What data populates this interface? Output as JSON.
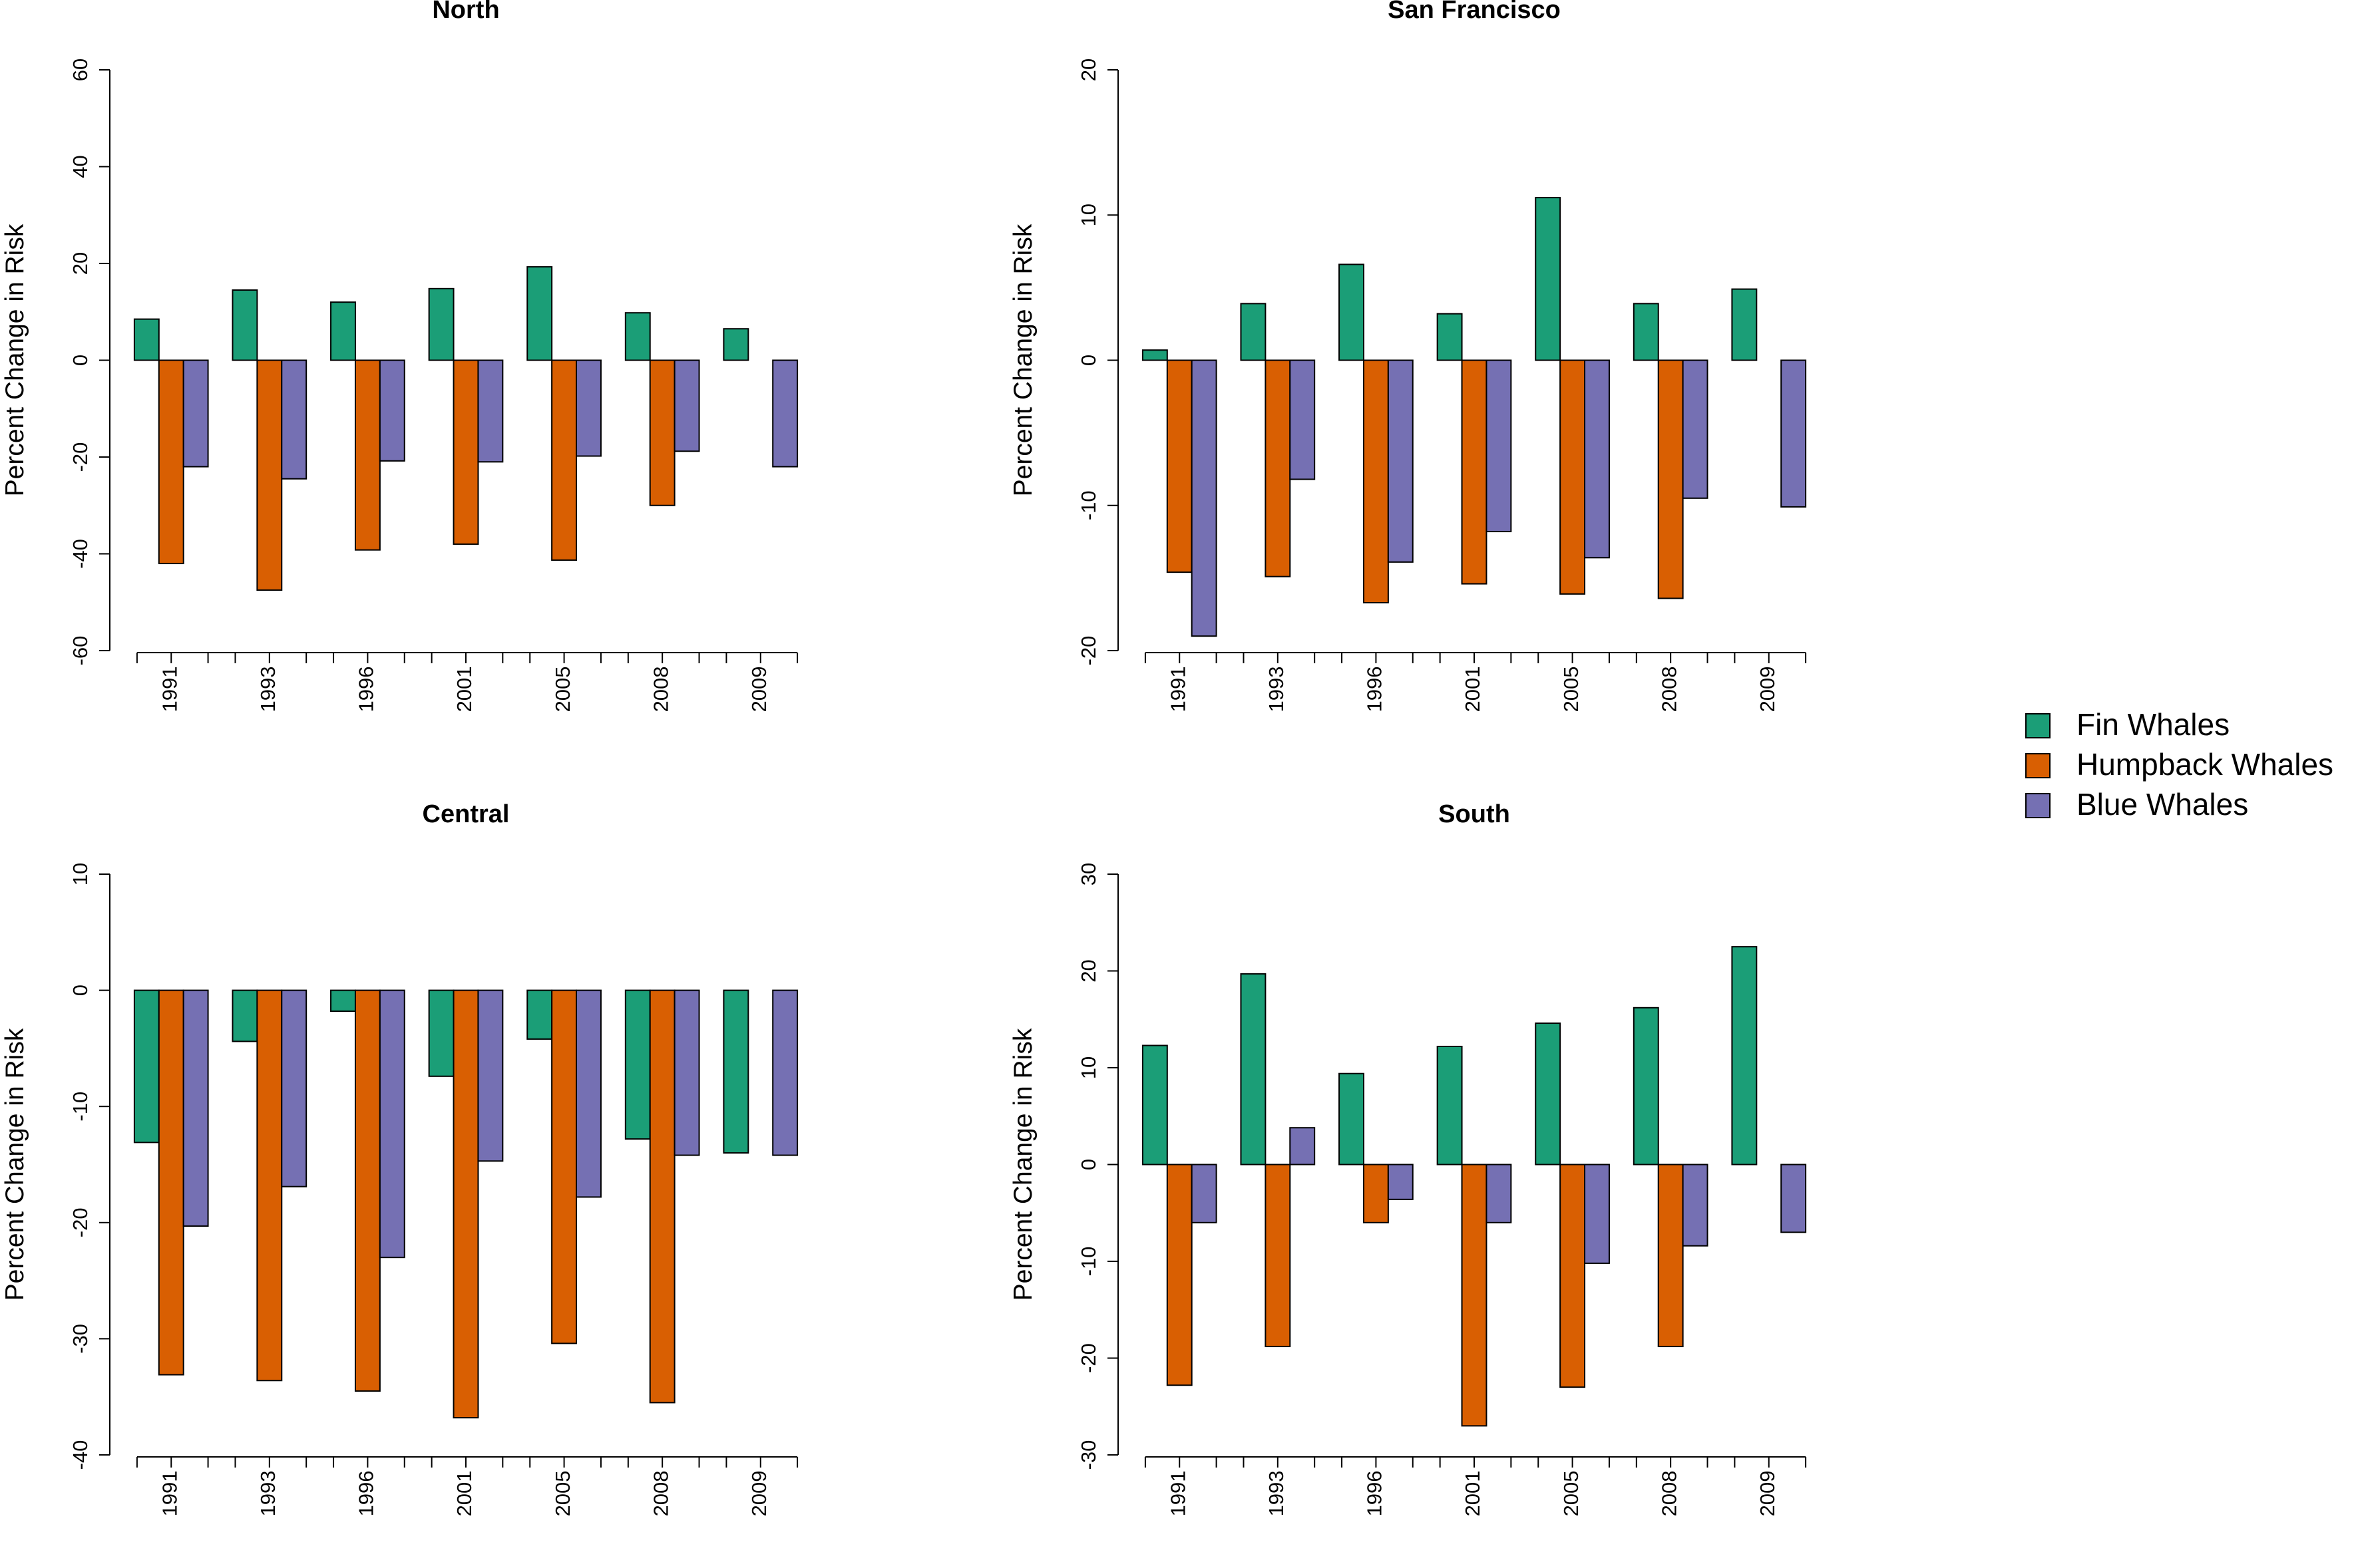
{
  "chart_data": [
    {
      "type": "bar",
      "title": "North",
      "xlabel": "",
      "ylabel": "Percent Change in Risk",
      "ylim": [
        -60,
        60
      ],
      "yticks": [
        -60,
        -40,
        -20,
        0,
        20,
        40,
        60
      ],
      "categories": [
        "1991",
        "1993",
        "1996",
        "2001",
        "2005",
        "2008",
        "2009"
      ],
      "series": [
        {
          "name": "Fin Whales",
          "values": [
            8.5,
            14.5,
            12,
            14.8,
            19.3,
            9.8,
            6.5
          ]
        },
        {
          "name": "Humpback Whales",
          "values": [
            -42,
            -47.5,
            -39.2,
            -38,
            -41.3,
            -30,
            null
          ]
        },
        {
          "name": "Blue Whales",
          "values": [
            -22,
            -24.5,
            -20.8,
            -21,
            -19.8,
            -18.8,
            -22
          ]
        }
      ]
    },
    {
      "type": "bar",
      "title": "San Francisco",
      "xlabel": "",
      "ylabel": "Percent Change in Risk",
      "ylim": [
        -20,
        20
      ],
      "yticks": [
        -20,
        -10,
        0,
        10,
        20
      ],
      "categories": [
        "1991",
        "1993",
        "1996",
        "2001",
        "2005",
        "2008",
        "2009"
      ],
      "series": [
        {
          "name": "Fin Whales",
          "values": [
            0.7,
            3.9,
            6.6,
            3.2,
            11.2,
            3.9,
            4.9
          ]
        },
        {
          "name": "Humpback Whales",
          "values": [
            -14.6,
            -14.9,
            -16.7,
            -15.4,
            -16.1,
            -16.4,
            null
          ]
        },
        {
          "name": "Blue Whales",
          "values": [
            -19,
            -8.2,
            -13.9,
            -11.8,
            -13.6,
            -9.5,
            -10.1
          ]
        }
      ]
    },
    {
      "type": "bar",
      "title": "Central",
      "xlabel": "",
      "ylabel": "Percent Change in Risk",
      "ylim": [
        -40,
        10
      ],
      "yticks": [
        -40,
        -30,
        -20,
        -10,
        0,
        10
      ],
      "categories": [
        "1991",
        "1993",
        "1996",
        "2001",
        "2005",
        "2008",
        "2009"
      ],
      "series": [
        {
          "name": "Fin Whales",
          "values": [
            -13.1,
            -4.4,
            -1.8,
            -7.4,
            -4.2,
            -12.8,
            -14
          ]
        },
        {
          "name": "Humpback Whales",
          "values": [
            -33.1,
            -33.6,
            -34.5,
            -36.8,
            -30.4,
            -35.5,
            null
          ]
        },
        {
          "name": "Blue Whales",
          "values": [
            -20.3,
            -16.9,
            -23,
            -14.7,
            -17.8,
            -14.2,
            -14.2
          ]
        }
      ]
    },
    {
      "type": "bar",
      "title": "South",
      "xlabel": "",
      "ylabel": "Percent Change in Risk",
      "ylim": [
        -30,
        30
      ],
      "yticks": [
        -30,
        -20,
        -10,
        0,
        10,
        20,
        30
      ],
      "categories": [
        "1991",
        "1993",
        "1996",
        "2001",
        "2005",
        "2008",
        "2009"
      ],
      "series": [
        {
          "name": "Fin Whales",
          "values": [
            12.3,
            19.7,
            9.4,
            12.2,
            14.6,
            16.2,
            22.5
          ]
        },
        {
          "name": "Humpback Whales",
          "values": [
            -22.8,
            -18.8,
            -6,
            -27,
            -23,
            -18.8,
            null
          ]
        },
        {
          "name": "Blue Whales",
          "values": [
            -6,
            3.8,
            -3.6,
            -6,
            -10.2,
            -8.4,
            -7
          ]
        }
      ]
    }
  ],
  "legend": {
    "placement": "right",
    "items": [
      {
        "label": "Fin Whales",
        "color": "#1b9e77"
      },
      {
        "label": "Humpback Whales",
        "color": "#d95f02"
      },
      {
        "label": "Blue Whales",
        "color": "#7570b3"
      }
    ]
  },
  "colors": {
    "fin": "#1b9e77",
    "humpback": "#d95f02",
    "blue": "#7570b3",
    "outline": "#000000"
  }
}
